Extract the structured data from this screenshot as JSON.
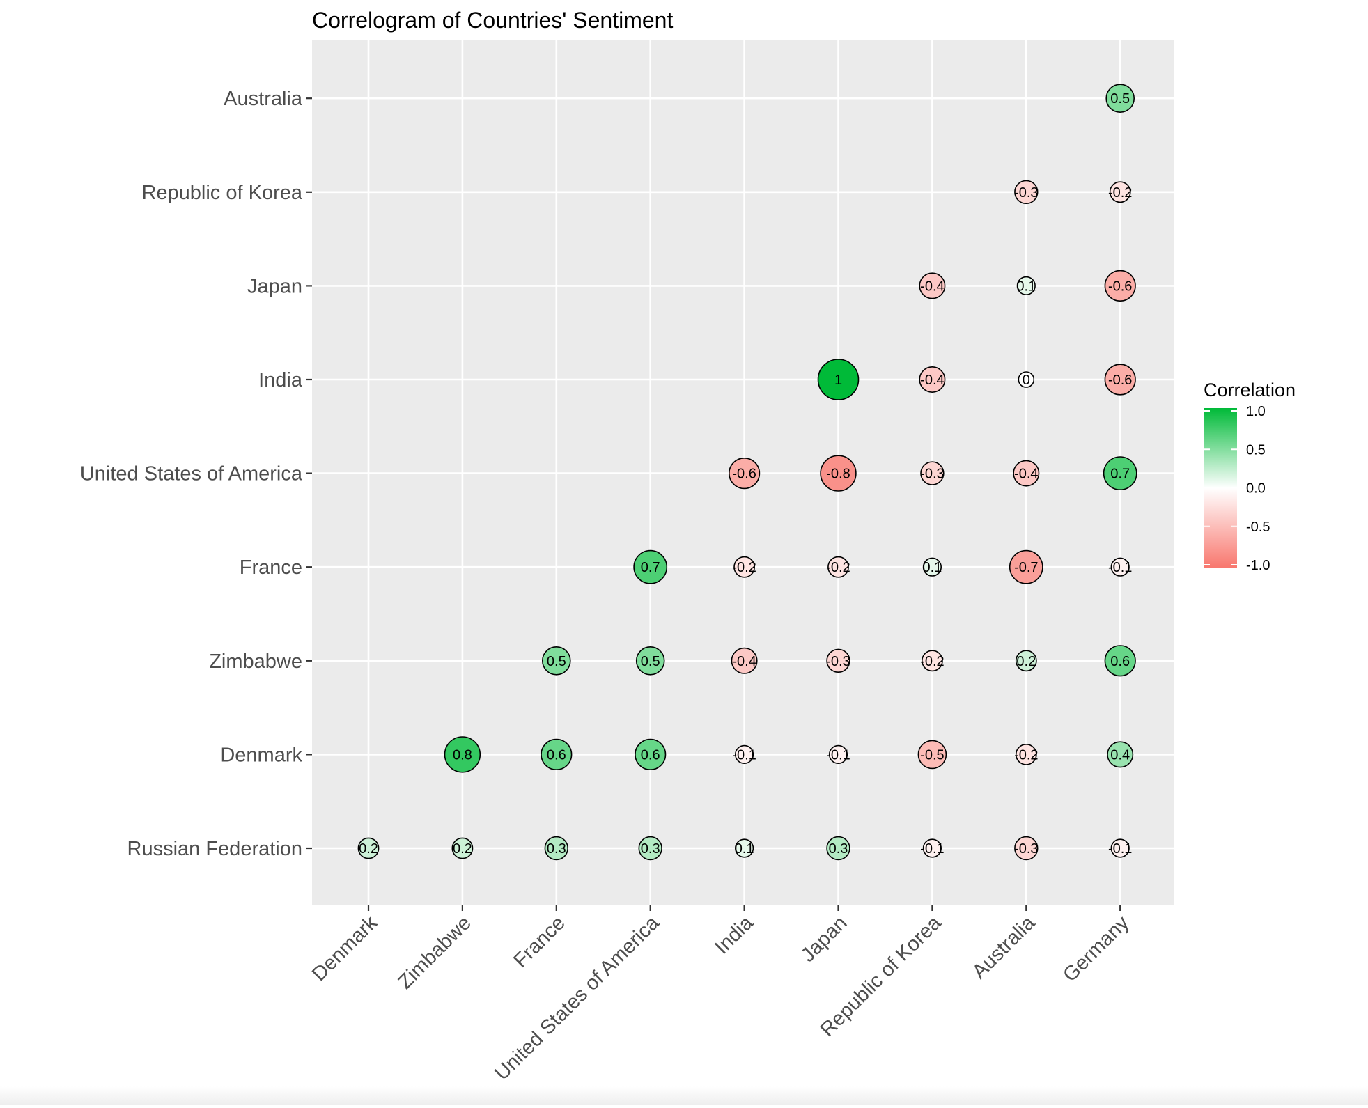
{
  "chart_data": {
    "type": "scatter",
    "title": "Correlogram of Countries' Sentiment",
    "xlabel": "",
    "ylabel": "",
    "x_categories": [
      "Denmark",
      "Zimbabwe",
      "France",
      "United States of America",
      "India",
      "Japan",
      "Republic of Korea",
      "Australia",
      "Germany"
    ],
    "y_categories": [
      "Russian Federation",
      "Denmark",
      "Zimbabwe",
      "France",
      "United States of America",
      "India",
      "Japan",
      "Republic of Korea",
      "Australia"
    ],
    "points": [
      {
        "x": "Germany",
        "y": "Australia",
        "value": 0.5,
        "label": "0.5"
      },
      {
        "x": "Australia",
        "y": "Republic of Korea",
        "value": -0.3,
        "label": "-0.3"
      },
      {
        "x": "Germany",
        "y": "Republic of Korea",
        "value": -0.2,
        "label": "-0.2"
      },
      {
        "x": "Republic of Korea",
        "y": "Japan",
        "value": -0.4,
        "label": "-0.4"
      },
      {
        "x": "Australia",
        "y": "Japan",
        "value": 0.1,
        "label": "0.1"
      },
      {
        "x": "Germany",
        "y": "Japan",
        "value": -0.6,
        "label": "-0.6"
      },
      {
        "x": "Japan",
        "y": "India",
        "value": 1.0,
        "label": "1"
      },
      {
        "x": "Republic of Korea",
        "y": "India",
        "value": -0.4,
        "label": "-0.4"
      },
      {
        "x": "Australia",
        "y": "India",
        "value": 0.0,
        "label": "0"
      },
      {
        "x": "Germany",
        "y": "India",
        "value": -0.6,
        "label": "-0.6"
      },
      {
        "x": "India",
        "y": "United States of America",
        "value": -0.6,
        "label": "-0.6"
      },
      {
        "x": "Japan",
        "y": "United States of America",
        "value": -0.8,
        "label": "-0.8"
      },
      {
        "x": "Republic of Korea",
        "y": "United States of America",
        "value": -0.3,
        "label": "-0.3"
      },
      {
        "x": "Australia",
        "y": "United States of America",
        "value": -0.4,
        "label": "-0.4"
      },
      {
        "x": "Germany",
        "y": "United States of America",
        "value": 0.7,
        "label": "0.7"
      },
      {
        "x": "United States of America",
        "y": "France",
        "value": 0.7,
        "label": "0.7"
      },
      {
        "x": "India",
        "y": "France",
        "value": -0.2,
        "label": "-0.2"
      },
      {
        "x": "Japan",
        "y": "France",
        "value": -0.2,
        "label": "-0.2"
      },
      {
        "x": "Republic of Korea",
        "y": "France",
        "value": 0.1,
        "label": "0.1"
      },
      {
        "x": "Australia",
        "y": "France",
        "value": -0.7,
        "label": "-0.7"
      },
      {
        "x": "Germany",
        "y": "France",
        "value": -0.1,
        "label": "-0.1"
      },
      {
        "x": "France",
        "y": "Zimbabwe",
        "value": 0.5,
        "label": "0.5"
      },
      {
        "x": "United States of America",
        "y": "Zimbabwe",
        "value": 0.5,
        "label": "0.5"
      },
      {
        "x": "India",
        "y": "Zimbabwe",
        "value": -0.4,
        "label": "-0.4"
      },
      {
        "x": "Japan",
        "y": "Zimbabwe",
        "value": -0.3,
        "label": "-0.3"
      },
      {
        "x": "Republic of Korea",
        "y": "Zimbabwe",
        "value": -0.2,
        "label": "-0.2"
      },
      {
        "x": "Australia",
        "y": "Zimbabwe",
        "value": 0.2,
        "label": "0.2"
      },
      {
        "x": "Germany",
        "y": "Zimbabwe",
        "value": 0.6,
        "label": "0.6"
      },
      {
        "x": "Zimbabwe",
        "y": "Denmark",
        "value": 0.8,
        "label": "0.8"
      },
      {
        "x": "France",
        "y": "Denmark",
        "value": 0.6,
        "label": "0.6"
      },
      {
        "x": "United States of America",
        "y": "Denmark",
        "value": 0.6,
        "label": "0.6"
      },
      {
        "x": "India",
        "y": "Denmark",
        "value": -0.1,
        "label": "-0.1"
      },
      {
        "x": "Japan",
        "y": "Denmark",
        "value": -0.1,
        "label": "-0.1"
      },
      {
        "x": "Republic of Korea",
        "y": "Denmark",
        "value": -0.5,
        "label": "-0.5"
      },
      {
        "x": "Australia",
        "y": "Denmark",
        "value": -0.2,
        "label": "-0.2"
      },
      {
        "x": "Germany",
        "y": "Denmark",
        "value": 0.4,
        "label": "0.4"
      },
      {
        "x": "Denmark",
        "y": "Russian Federation",
        "value": 0.2,
        "label": "0.2"
      },
      {
        "x": "Zimbabwe",
        "y": "Russian Federation",
        "value": 0.2,
        "label": "0.2"
      },
      {
        "x": "France",
        "y": "Russian Federation",
        "value": 0.3,
        "label": "0.3"
      },
      {
        "x": "United States of America",
        "y": "Russian Federation",
        "value": 0.3,
        "label": "0.3"
      },
      {
        "x": "India",
        "y": "Russian Federation",
        "value": 0.1,
        "label": "0.1"
      },
      {
        "x": "Japan",
        "y": "Russian Federation",
        "value": 0.3,
        "label": "0.3"
      },
      {
        "x": "Republic of Korea",
        "y": "Russian Federation",
        "value": -0.1,
        "label": "-0.1"
      },
      {
        "x": "Australia",
        "y": "Russian Federation",
        "value": -0.3,
        "label": "-0.3"
      },
      {
        "x": "Germany",
        "y": "Russian Federation",
        "value": -0.1,
        "label": "-0.1"
      }
    ],
    "legend": {
      "title": "Correlation",
      "placement": "right",
      "ticks": [
        {
          "value": 1.0,
          "label": "1.0"
        },
        {
          "value": 0.5,
          "label": "0.5"
        },
        {
          "value": 0.0,
          "label": "0.0"
        },
        {
          "value": -0.5,
          "label": "-0.5"
        },
        {
          "value": -1.0,
          "label": "-1.0"
        }
      ]
    },
    "color_scale": {
      "low": "#F8766D",
      "mid": "#FFFFFF",
      "high": "#00BA38",
      "limits": [
        -1,
        1
      ]
    },
    "panel_background": "#EBEBEB",
    "grid": true
  }
}
